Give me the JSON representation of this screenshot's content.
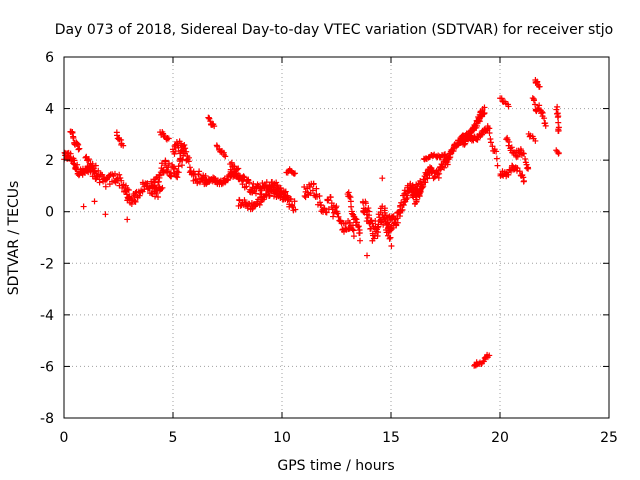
{
  "chart_data": {
    "type": "scatter",
    "title": "Day 073 of 2018, Sidereal Day-to-day VTEC variation (SDTVAR) for receiver stjo",
    "xlabel": "GPS time / hours",
    "ylabel": "SDTVAR / TECUs",
    "xlim": [
      0,
      25
    ],
    "ylim": [
      -8,
      6
    ],
    "xticks": [
      0,
      5,
      10,
      15,
      20,
      25
    ],
    "yticks": [
      -8,
      -6,
      -4,
      -2,
      0,
      2,
      4,
      6
    ],
    "grid": true,
    "marker": "+",
    "color": "#ff0000",
    "segments": [
      {
        "x0": 0.0,
        "x1": 1.5,
        "y0": 2.1,
        "y1": 1.3,
        "n": 70,
        "spread": 0.35
      },
      {
        "x0": 0.3,
        "x1": 0.7,
        "y0": 3.1,
        "y1": 2.4,
        "n": 20,
        "spread": 0.15
      },
      {
        "x0": 1.0,
        "x1": 3.0,
        "y0": 1.8,
        "y1": 0.8,
        "n": 60,
        "spread": 0.45
      },
      {
        "x0": 2.4,
        "x1": 2.7,
        "y0": 3.0,
        "y1": 2.6,
        "n": 10,
        "spread": 0.15
      },
      {
        "x0": 2.8,
        "x1": 4.5,
        "y0": 0.6,
        "y1": 1.0,
        "n": 55,
        "spread": 0.4
      },
      {
        "x0": 4.0,
        "x1": 5.5,
        "y0": 1.2,
        "y1": 2.0,
        "n": 60,
        "spread": 0.55
      },
      {
        "x0": 4.4,
        "x1": 4.8,
        "y0": 3.1,
        "y1": 2.8,
        "n": 10,
        "spread": 0.1
      },
      {
        "x0": 5.0,
        "x1": 6.5,
        "y0": 2.7,
        "y1": 1.0,
        "n": 60,
        "spread": 0.5
      },
      {
        "x0": 6.6,
        "x1": 6.9,
        "y0": 3.6,
        "y1": 3.3,
        "n": 10,
        "spread": 0.1
      },
      {
        "x0": 6.5,
        "x1": 8.0,
        "y0": 1.1,
        "y1": 1.4,
        "n": 55,
        "spread": 0.2
      },
      {
        "x0": 7.0,
        "x1": 7.4,
        "y0": 2.5,
        "y1": 2.2,
        "n": 10,
        "spread": 0.1
      },
      {
        "x0": 7.6,
        "x1": 10.6,
        "y0": 1.5,
        "y1": 0.4,
        "n": 110,
        "spread": 0.45
      },
      {
        "x0": 8.0,
        "x1": 10.2,
        "y0": 0.2,
        "y1": 0.8,
        "n": 70,
        "spread": 0.3
      },
      {
        "x0": 10.2,
        "x1": 10.6,
        "y0": 1.6,
        "y1": 1.5,
        "n": 10,
        "spread": 0.1
      },
      {
        "x0": 11.0,
        "x1": 12.3,
        "y0": 1.0,
        "y1": 0.1,
        "n": 40,
        "spread": 0.5
      },
      {
        "x0": 12.3,
        "x1": 13.3,
        "y0": 0.0,
        "y1": -0.8,
        "n": 35,
        "spread": 0.4
      },
      {
        "x0": 13.0,
        "x1": 13.6,
        "y0": 0.7,
        "y1": -1.0,
        "n": 25,
        "spread": 0.3
      },
      {
        "x0": 13.7,
        "x1": 15.0,
        "y0": -0.2,
        "y1": -0.6,
        "n": 70,
        "spread": 0.8
      },
      {
        "x0": 14.8,
        "x1": 16.4,
        "y0": -0.6,
        "y1": 1.3,
        "n": 90,
        "spread": 0.5
      },
      {
        "x0": 16.0,
        "x1": 17.5,
        "y0": 0.6,
        "y1": 2.0,
        "n": 70,
        "spread": 0.45
      },
      {
        "x0": 16.5,
        "x1": 17.5,
        "y0": 2.1,
        "y1": 2.2,
        "n": 25,
        "spread": 0.1
      },
      {
        "x0": 17.5,
        "x1": 19.3,
        "y0": 2.0,
        "y1": 3.8,
        "n": 120,
        "spread": 0.3
      },
      {
        "x0": 18.3,
        "x1": 19.5,
        "y0": 2.6,
        "y1": 3.2,
        "n": 40,
        "spread": 0.2
      },
      {
        "x0": 18.8,
        "x1": 19.5,
        "y0": -6.0,
        "y1": -5.6,
        "n": 20,
        "spread": 0.1
      },
      {
        "x0": 19.5,
        "x1": 19.9,
        "y0": 2.9,
        "y1": 1.9,
        "n": 10,
        "spread": 0.25
      },
      {
        "x0": 20.0,
        "x1": 20.4,
        "y0": 4.4,
        "y1": 4.1,
        "n": 8,
        "spread": 0.1
      },
      {
        "x0": 20.0,
        "x1": 20.8,
        "y0": 1.4,
        "y1": 1.7,
        "n": 25,
        "spread": 0.2
      },
      {
        "x0": 20.3,
        "x1": 21.3,
        "y0": 2.6,
        "y1": 1.9,
        "n": 30,
        "spread": 0.3
      },
      {
        "x0": 20.9,
        "x1": 21.1,
        "y0": 1.5,
        "y1": 1.2,
        "n": 8,
        "spread": 0.15
      },
      {
        "x0": 21.3,
        "x1": 21.6,
        "y0": 3.0,
        "y1": 2.8,
        "n": 6,
        "spread": 0.1
      },
      {
        "x0": 21.6,
        "x1": 21.8,
        "y0": 5.1,
        "y1": 4.9,
        "n": 8,
        "spread": 0.1
      },
      {
        "x0": 21.5,
        "x1": 22.1,
        "y0": 4.4,
        "y1": 3.5,
        "n": 20,
        "spread": 0.3
      },
      {
        "x0": 22.6,
        "x1": 22.7,
        "y0": 4.1,
        "y1": 3.1,
        "n": 12,
        "spread": 0.25
      },
      {
        "x0": 22.6,
        "x1": 22.7,
        "y0": 2.4,
        "y1": 2.2,
        "n": 4,
        "spread": 0.1
      }
    ],
    "outliers": [
      {
        "x": 0.9,
        "y": 0.2
      },
      {
        "x": 1.4,
        "y": 0.4
      },
      {
        "x": 1.9,
        "y": -0.1
      },
      {
        "x": 2.9,
        "y": -0.3
      },
      {
        "x": 14.6,
        "y": 1.3
      },
      {
        "x": 13.9,
        "y": -1.7
      }
    ]
  }
}
